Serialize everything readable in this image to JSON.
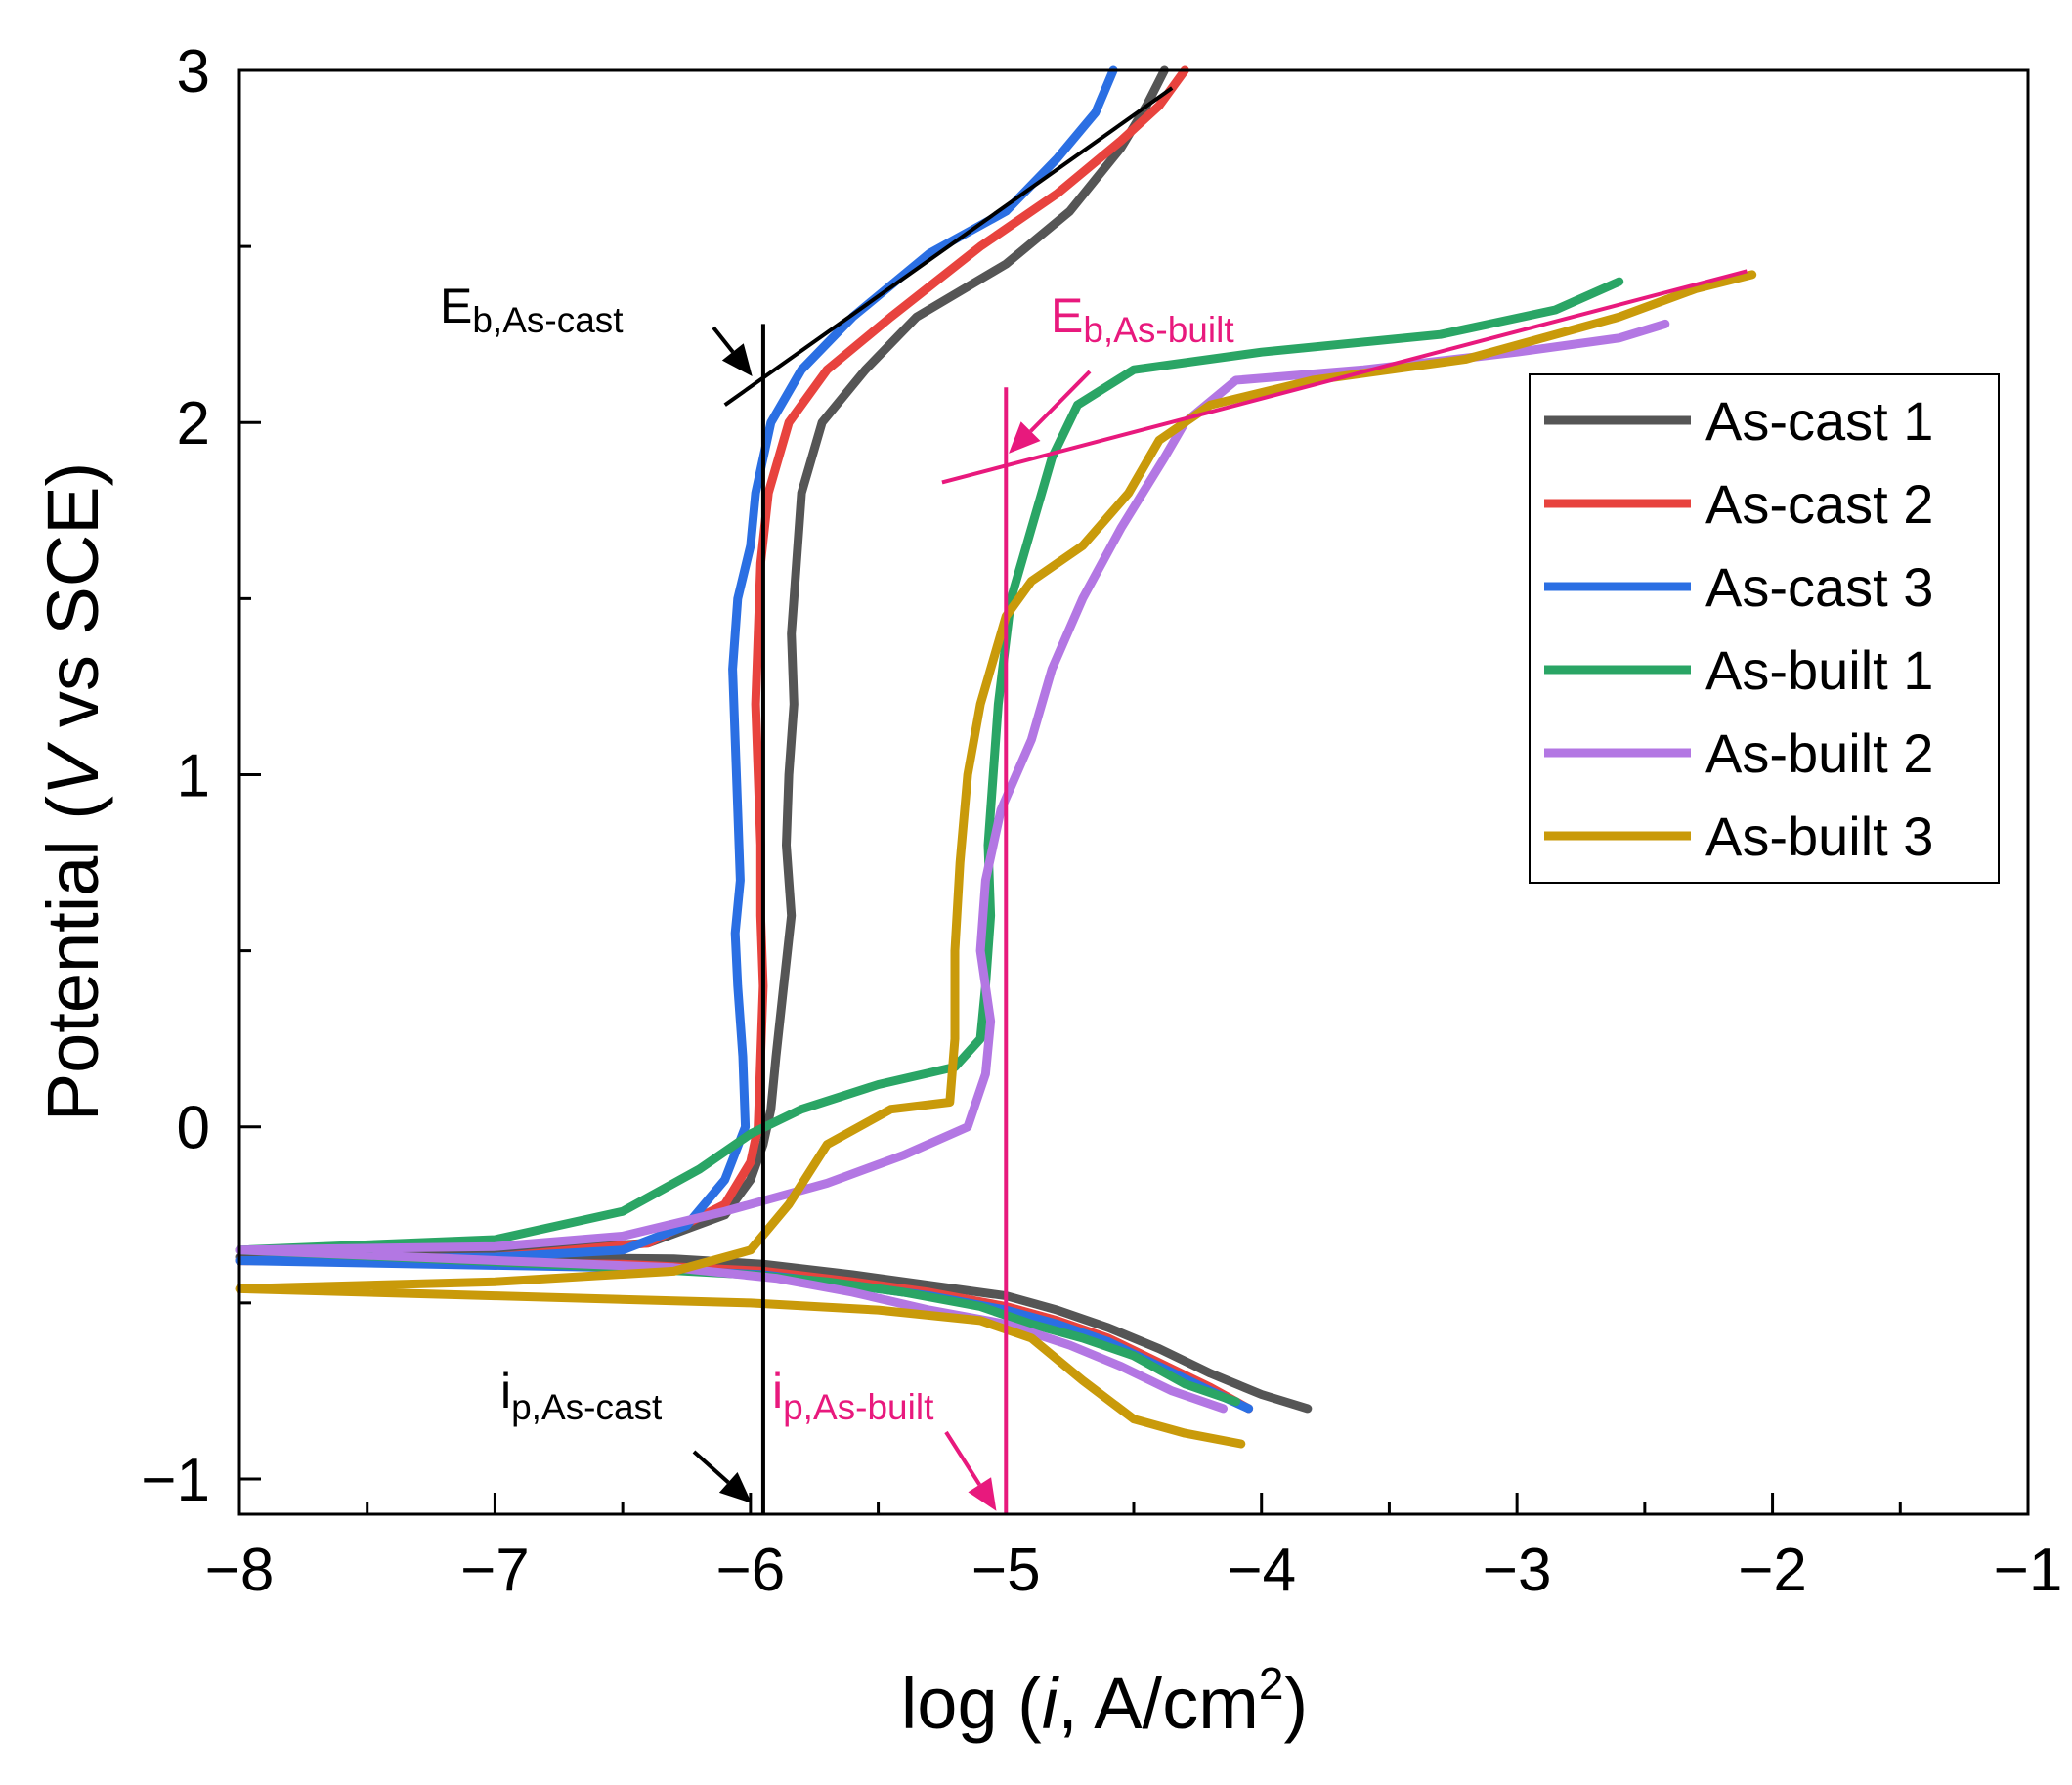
{
  "chart_data": {
    "type": "line",
    "xlabel_prefix": "log (",
    "xlabel_italic": "i",
    "xlabel_unit": ", A/cm",
    "xlabel_sup": "2",
    "xlabel_suffix": ")",
    "ylabel_prefix": "Potential (",
    "ylabel_italic": "V",
    "ylabel_suffix": " vs SCE)",
    "xlim": [
      -8,
      -1
    ],
    "ylim": [
      -1.1,
      3
    ],
    "x_major_ticks": [
      -8,
      -7,
      -6,
      -5,
      -4,
      -3,
      -2,
      -1
    ],
    "x_tick_labels": [
      "−8",
      "−7",
      "−6",
      "−5",
      "−4",
      "−3",
      "−2",
      "−1"
    ],
    "x_minor_ticks": [
      -7.5,
      -6.5,
      -5.5,
      -4.5,
      -3.5,
      -2.5,
      -1.5
    ],
    "y_major_ticks": [
      -1,
      0,
      1,
      2,
      3
    ],
    "y_tick_labels": [
      "−1",
      "0",
      "1",
      "2",
      "3"
    ],
    "y_minor_ticks": [
      -0.5,
      0.5,
      1.5,
      2.5
    ],
    "legend_position": "top-right",
    "series": [
      {
        "name": "As-cast 1",
        "color": "#555555",
        "points": [
          [
            -3.82,
            -0.8
          ],
          [
            -4.0,
            -0.76
          ],
          [
            -4.2,
            -0.7
          ],
          [
            -4.4,
            -0.63
          ],
          [
            -4.6,
            -0.57
          ],
          [
            -4.8,
            -0.52
          ],
          [
            -5.0,
            -0.48
          ],
          [
            -5.3,
            -0.45
          ],
          [
            -5.6,
            -0.42
          ],
          [
            -5.95,
            -0.39
          ],
          [
            -6.3,
            -0.375
          ],
          [
            -7.0,
            -0.37
          ],
          [
            -8.0,
            -0.37
          ],
          [
            -7.0,
            -0.36
          ],
          [
            -6.4,
            -0.33
          ],
          [
            -6.1,
            -0.25
          ],
          [
            -6.0,
            -0.15
          ],
          [
            -5.95,
            -0.05
          ],
          [
            -5.92,
            0.05
          ],
          [
            -5.9,
            0.2
          ],
          [
            -5.87,
            0.4
          ],
          [
            -5.84,
            0.6
          ],
          [
            -5.86,
            0.8
          ],
          [
            -5.85,
            1.0
          ],
          [
            -5.83,
            1.2
          ],
          [
            -5.84,
            1.4
          ],
          [
            -5.82,
            1.6
          ],
          [
            -5.8,
            1.8
          ],
          [
            -5.72,
            2.0
          ],
          [
            -5.55,
            2.15
          ],
          [
            -5.35,
            2.3
          ],
          [
            -5.0,
            2.45
          ],
          [
            -4.75,
            2.6
          ],
          [
            -4.55,
            2.78
          ],
          [
            -4.45,
            2.9
          ],
          [
            -4.38,
            3.0
          ]
        ]
      },
      {
        "name": "As-cast 2",
        "color": "#e8433e",
        "points": [
          [
            -4.05,
            -0.8
          ],
          [
            -4.2,
            -0.74
          ],
          [
            -4.4,
            -0.67
          ],
          [
            -4.6,
            -0.6
          ],
          [
            -4.8,
            -0.55
          ],
          [
            -5.0,
            -0.51
          ],
          [
            -5.3,
            -0.47
          ],
          [
            -5.6,
            -0.44
          ],
          [
            -5.95,
            -0.41
          ],
          [
            -6.5,
            -0.39
          ],
          [
            -8.0,
            -0.38
          ],
          [
            -7.0,
            -0.37
          ],
          [
            -6.4,
            -0.33
          ],
          [
            -6.1,
            -0.22
          ],
          [
            -6.0,
            -0.1
          ],
          [
            -5.97,
            0.0
          ],
          [
            -5.96,
            0.2
          ],
          [
            -5.95,
            0.4
          ],
          [
            -5.96,
            0.6
          ],
          [
            -5.96,
            0.8
          ],
          [
            -5.97,
            1.0
          ],
          [
            -5.98,
            1.2
          ],
          [
            -5.97,
            1.4
          ],
          [
            -5.96,
            1.6
          ],
          [
            -5.93,
            1.8
          ],
          [
            -5.85,
            2.0
          ],
          [
            -5.7,
            2.15
          ],
          [
            -5.45,
            2.3
          ],
          [
            -5.1,
            2.5
          ],
          [
            -4.8,
            2.65
          ],
          [
            -4.55,
            2.8
          ],
          [
            -4.4,
            2.9
          ],
          [
            -4.3,
            3.0
          ]
        ]
      },
      {
        "name": "As-cast 3",
        "color": "#2b6fe3",
        "points": [
          [
            -4.05,
            -0.8
          ],
          [
            -4.2,
            -0.75
          ],
          [
            -4.4,
            -0.68
          ],
          [
            -4.6,
            -0.61
          ],
          [
            -4.8,
            -0.56
          ],
          [
            -5.0,
            -0.52
          ],
          [
            -5.3,
            -0.48
          ],
          [
            -5.6,
            -0.45
          ],
          [
            -5.95,
            -0.42
          ],
          [
            -6.5,
            -0.4
          ],
          [
            -8.0,
            -0.38
          ],
          [
            -7.0,
            -0.37
          ],
          [
            -6.5,
            -0.35
          ],
          [
            -6.25,
            -0.28
          ],
          [
            -6.1,
            -0.15
          ],
          [
            -6.02,
            0.0
          ],
          [
            -6.03,
            0.2
          ],
          [
            -6.05,
            0.4
          ],
          [
            -6.06,
            0.55
          ],
          [
            -6.04,
            0.7
          ],
          [
            -6.05,
            0.9
          ],
          [
            -6.06,
            1.1
          ],
          [
            -6.07,
            1.3
          ],
          [
            -6.05,
            1.5
          ],
          [
            -6.0,
            1.65
          ],
          [
            -5.98,
            1.8
          ],
          [
            -5.92,
            2.0
          ],
          [
            -5.8,
            2.15
          ],
          [
            -5.6,
            2.3
          ],
          [
            -5.3,
            2.48
          ],
          [
            -5.0,
            2.6
          ],
          [
            -4.8,
            2.75
          ],
          [
            -4.65,
            2.88
          ],
          [
            -4.58,
            3.0
          ]
        ]
      },
      {
        "name": "As-built 1",
        "color": "#2aa565",
        "points": [
          [
            -4.1,
            -0.78
          ],
          [
            -4.3,
            -0.73
          ],
          [
            -4.5,
            -0.65
          ],
          [
            -4.7,
            -0.6
          ],
          [
            -4.9,
            -0.56
          ],
          [
            -5.1,
            -0.51
          ],
          [
            -5.4,
            -0.47
          ],
          [
            -5.7,
            -0.44
          ],
          [
            -6.0,
            -0.42
          ],
          [
            -6.5,
            -0.4
          ],
          [
            -8.0,
            -0.35
          ],
          [
            -7.0,
            -0.32
          ],
          [
            -6.5,
            -0.24
          ],
          [
            -6.2,
            -0.12
          ],
          [
            -6.0,
            -0.02
          ],
          [
            -5.8,
            0.05
          ],
          [
            -5.5,
            0.12
          ],
          [
            -5.2,
            0.17
          ],
          [
            -5.1,
            0.25
          ],
          [
            -5.08,
            0.4
          ],
          [
            -5.06,
            0.6
          ],
          [
            -5.07,
            0.8
          ],
          [
            -5.05,
            1.0
          ],
          [
            -5.03,
            1.2
          ],
          [
            -4.98,
            1.5
          ],
          [
            -4.9,
            1.7
          ],
          [
            -4.82,
            1.9
          ],
          [
            -4.72,
            2.05
          ],
          [
            -4.5,
            2.15
          ],
          [
            -4.0,
            2.2
          ],
          [
            -3.3,
            2.25
          ],
          [
            -2.85,
            2.32
          ],
          [
            -2.6,
            2.4
          ]
        ]
      },
      {
        "name": "As-built 2",
        "color": "#b377e3",
        "points": [
          [
            -4.15,
            -0.8
          ],
          [
            -4.35,
            -0.75
          ],
          [
            -4.55,
            -0.68
          ],
          [
            -4.75,
            -0.62
          ],
          [
            -5.0,
            -0.56
          ],
          [
            -5.3,
            -0.52
          ],
          [
            -5.6,
            -0.47
          ],
          [
            -5.9,
            -0.43
          ],
          [
            -6.3,
            -0.4
          ],
          [
            -8.0,
            -0.35
          ],
          [
            -7.0,
            -0.34
          ],
          [
            -6.5,
            -0.31
          ],
          [
            -6.1,
            -0.24
          ],
          [
            -5.7,
            -0.16
          ],
          [
            -5.4,
            -0.08
          ],
          [
            -5.15,
            0.0
          ],
          [
            -5.08,
            0.15
          ],
          [
            -5.06,
            0.3
          ],
          [
            -5.1,
            0.5
          ],
          [
            -5.08,
            0.7
          ],
          [
            -5.02,
            0.9
          ],
          [
            -4.9,
            1.1
          ],
          [
            -4.82,
            1.3
          ],
          [
            -4.7,
            1.5
          ],
          [
            -4.55,
            1.7
          ],
          [
            -4.38,
            1.9
          ],
          [
            -4.3,
            2.0
          ],
          [
            -4.1,
            2.12
          ],
          [
            -3.6,
            2.15
          ],
          [
            -3.0,
            2.2
          ],
          [
            -2.6,
            2.24
          ],
          [
            -2.42,
            2.28
          ]
        ]
      },
      {
        "name": "As-built 3",
        "color": "#c99a0a",
        "points": [
          [
            -4.08,
            -0.9
          ],
          [
            -4.3,
            -0.87
          ],
          [
            -4.5,
            -0.83
          ],
          [
            -4.7,
            -0.72
          ],
          [
            -4.9,
            -0.6
          ],
          [
            -5.1,
            -0.55
          ],
          [
            -5.5,
            -0.52
          ],
          [
            -6.0,
            -0.5
          ],
          [
            -7.0,
            -0.48
          ],
          [
            -8.0,
            -0.46
          ],
          [
            -7.0,
            -0.44
          ],
          [
            -6.3,
            -0.41
          ],
          [
            -6.0,
            -0.35
          ],
          [
            -5.85,
            -0.22
          ],
          [
            -5.7,
            -0.05
          ],
          [
            -5.45,
            0.05
          ],
          [
            -5.22,
            0.07
          ],
          [
            -5.2,
            0.25
          ],
          [
            -5.2,
            0.5
          ],
          [
            -5.18,
            0.75
          ],
          [
            -5.15,
            1.0
          ],
          [
            -5.1,
            1.2
          ],
          [
            -5.0,
            1.45
          ],
          [
            -4.9,
            1.55
          ],
          [
            -4.7,
            1.65
          ],
          [
            -4.52,
            1.8
          ],
          [
            -4.4,
            1.95
          ],
          [
            -4.2,
            2.05
          ],
          [
            -3.8,
            2.12
          ],
          [
            -3.2,
            2.18
          ],
          [
            -2.6,
            2.3
          ],
          [
            -2.3,
            2.38
          ],
          [
            -2.08,
            2.42
          ]
        ]
      }
    ],
    "annotations": {
      "eb_cast_main": "E",
      "eb_cast_sub": "b,As-cast",
      "eb_built_main": "E",
      "eb_built_sub": "b,As-built",
      "ip_cast_main": "i",
      "ip_cast_sub": "p,As-cast",
      "ip_built_main": "i",
      "ip_built_sub": "p,As-built",
      "black_color": "#000000",
      "pink_color": "#e8197d",
      "vertical_line_cast_x": -5.95,
      "vertical_line_cast_y": [
        -1.1,
        2.28
      ],
      "tangent_cast": [
        [
          -6.1,
          2.05
        ],
        [
          -4.35,
          2.95
        ]
      ],
      "vertical_line_built_x": -5.0,
      "vertical_line_built_y": [
        -1.1,
        2.1
      ],
      "tangent_built": [
        [
          -5.25,
          1.83
        ],
        [
          -2.1,
          2.43
        ]
      ],
      "arrow_cast_eb_point": [
        -5.97,
        2.12
      ],
      "arrow_built_eb_point": [
        -5.02,
        1.89
      ],
      "arrow_cast_ip_point": [
        -5.98,
        -1.08
      ],
      "arrow_built_ip_point": [
        -5.03,
        -1.08
      ]
    }
  }
}
